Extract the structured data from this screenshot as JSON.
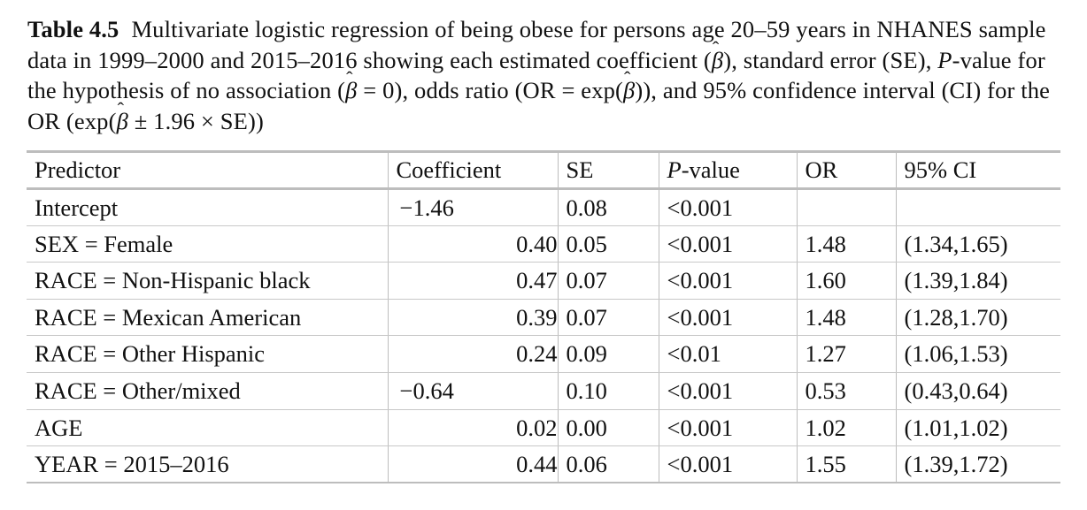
{
  "caption": {
    "label": "Table 4.5",
    "text_1": "Multivariate logistic regression of being obese for persons age 20–59 years in NHANES sample data in 1999–2000 and 2015–2016 showing each estimated coefficient (",
    "beta": "β",
    "text_2": "), standard error (SE), ",
    "p": "P",
    "text_3": "-value for the hypothesis of no association (",
    "text_4": " = 0), odds ratio (OR = exp(",
    "text_5": ")), and 95% confidence interval (CI) for the OR (exp(",
    "text_6": " ± 1.96 × SE))"
  },
  "table": {
    "headers": {
      "predictor": "Predictor",
      "coefficient": "Coefficient",
      "se": "SE",
      "p_italic": "P",
      "p_rest": "-value",
      "or": "OR",
      "ci": "95% CI"
    },
    "rows": [
      {
        "predictor": "Intercept",
        "coefficient": "−1.46",
        "se": "0.08",
        "p": "<0.001",
        "or": "",
        "ci": ""
      },
      {
        "predictor": "SEX = Female",
        "coefficient": "0.40",
        "se": "0.05",
        "p": "<0.001",
        "or": "1.48",
        "ci": "(1.34,1.65)"
      },
      {
        "predictor": "RACE = Non-Hispanic black",
        "coefficient": "0.47",
        "se": "0.07",
        "p": "<0.001",
        "or": "1.60",
        "ci": "(1.39,1.84)"
      },
      {
        "predictor": "RACE = Mexican American",
        "coefficient": "0.39",
        "se": "0.07",
        "p": "<0.001",
        "or": "1.48",
        "ci": "(1.28,1.70)"
      },
      {
        "predictor": "RACE = Other Hispanic",
        "coefficient": "0.24",
        "se": "0.09",
        "p": "<0.01",
        "or": "1.27",
        "ci": "(1.06,1.53)"
      },
      {
        "predictor": "RACE = Other/mixed",
        "coefficient": "−0.64",
        "se": "0.10",
        "p": "<0.001",
        "or": "0.53",
        "ci": "(0.43,0.64)"
      },
      {
        "predictor": "AGE",
        "coefficient": "0.02",
        "se": "0.00",
        "p": "<0.001",
        "or": "1.02",
        "ci": "(1.01,1.02)"
      },
      {
        "predictor": "YEAR = 2015–2016",
        "coefficient": "0.44",
        "se": "0.06",
        "p": "<0.001",
        "or": "1.55",
        "ci": "(1.39,1.72)"
      }
    ]
  }
}
